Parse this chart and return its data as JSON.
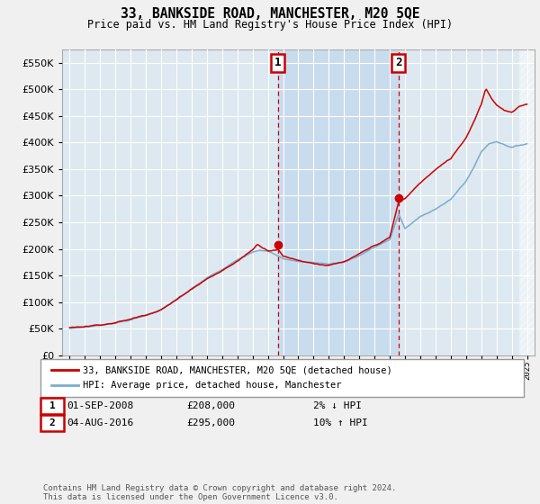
{
  "title": "33, BANKSIDE ROAD, MANCHESTER, M20 5QE",
  "subtitle": "Price paid vs. HM Land Registry's House Price Index (HPI)",
  "legend_property": "33, BANKSIDE ROAD, MANCHESTER, M20 5QE (detached house)",
  "legend_hpi": "HPI: Average price, detached house, Manchester",
  "annotation_1_date": "01-SEP-2008",
  "annotation_1_price": "£208,000",
  "annotation_1_hpi": "2% ↓ HPI",
  "annotation_2_date": "04-AUG-2016",
  "annotation_2_price": "£295,000",
  "annotation_2_hpi": "10% ↑ HPI",
  "footer": "Contains HM Land Registry data © Crown copyright and database right 2024.\nThis data is licensed under the Open Government Licence v3.0.",
  "property_color": "#cc0000",
  "hpi_color": "#7aaccc",
  "marker_color": "#cc0000",
  "dashed_line_color": "#cc0000",
  "plot_bg_color": "#dde8f0",
  "shade_between_color": "#c8dcee",
  "grid_color": "#ffffff",
  "fig_bg_color": "#f0f0f0",
  "ylim": [
    0,
    575000
  ],
  "yticks": [
    0,
    50000,
    100000,
    150000,
    200000,
    250000,
    300000,
    350000,
    400000,
    450000,
    500000,
    550000
  ],
  "sale1_year": 2008.67,
  "sale1_price": 208000,
  "sale2_year": 2016.58,
  "sale2_price": 295000,
  "xmin": 1994.5,
  "xmax": 2025.5
}
